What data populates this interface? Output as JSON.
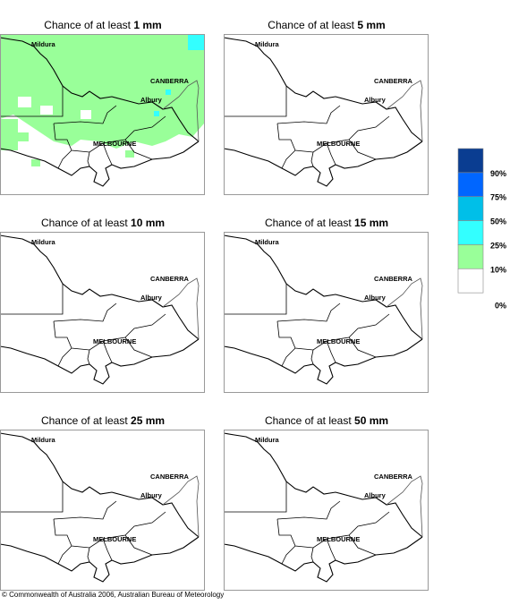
{
  "panels": [
    {
      "title": "Chance of at least",
      "amount": "1 mm",
      "cities": [
        "Mildura",
        "CANBERRA",
        "Albury",
        "MELBOURNE"
      ]
    },
    {
      "title": "Chance of at least",
      "amount": "5 mm",
      "cities": [
        "Mildura",
        "CANBERRA",
        "Albury",
        "MELBOURNE"
      ]
    },
    {
      "title": "Chance of at least",
      "amount": "10 mm",
      "cities": [
        "Mildura",
        "CANBERRA",
        "Albury",
        "MELBOURNE"
      ]
    },
    {
      "title": "Chance of at least",
      "amount": "15 mm",
      "cities": [
        "Mildura",
        "CANBERRA",
        "Albury",
        "MELBOURNE"
      ]
    },
    {
      "title": "Chance of at least",
      "amount": "25 mm",
      "cities": [
        "Mildura",
        "CANBERRA",
        "Albury",
        "MELBOURNE"
      ]
    },
    {
      "title": "Chance of at least",
      "amount": "50 mm",
      "cities": [
        "Mildura",
        "CANBERRA",
        "Albury",
        "MELBOURNE"
      ]
    }
  ],
  "legend": {
    "colors": [
      "#0a3d91",
      "#0066ff",
      "#00bfe8",
      "#33ffff",
      "#99ff99",
      "#ffffff"
    ],
    "labels": [
      "90%",
      "75%",
      "50%",
      "25%",
      "10%",
      "0%"
    ]
  },
  "footer": "© Commonwealth of Australia 2006, Australian Bureau of Meteorology"
}
